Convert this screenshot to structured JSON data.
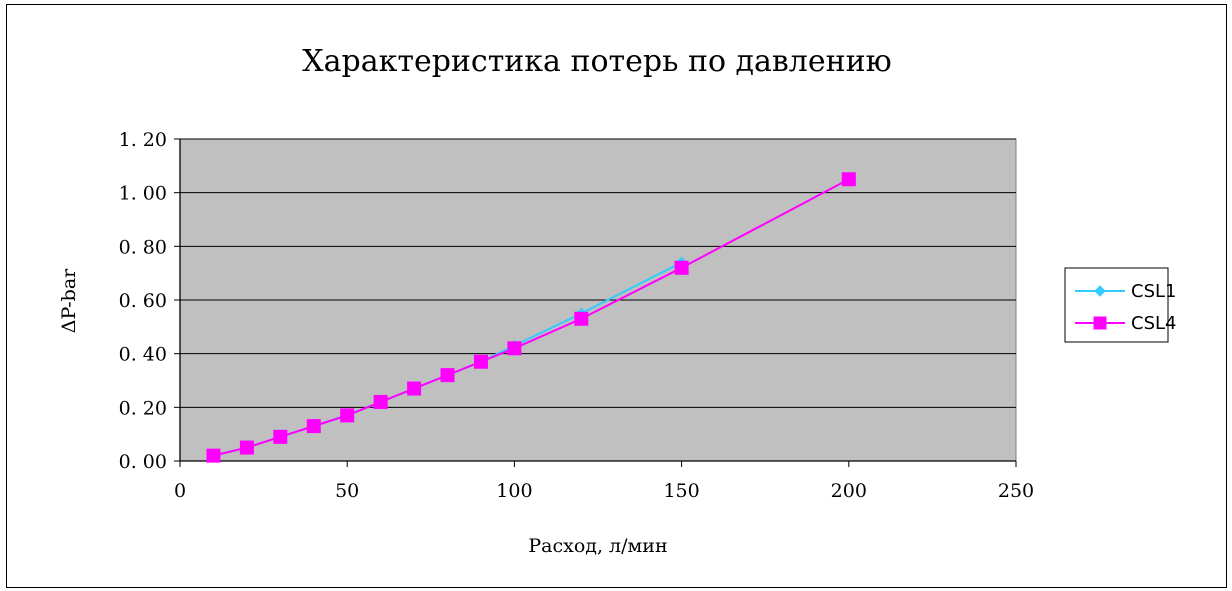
{
  "chart_data": {
    "type": "line",
    "title": "Характеристика потерь по давлению",
    "xlabel": "Расход, л/мин",
    "ylabel": "ΔP-bar",
    "xlim": [
      0,
      250
    ],
    "ylim": [
      0,
      1.2
    ],
    "x_ticks": [
      "0",
      "50",
      "100",
      "150",
      "200",
      "250"
    ],
    "y_ticks": [
      "0. 00",
      "0. 20",
      "0. 40",
      "0. 60",
      "0. 80",
      "1. 00",
      "1. 20"
    ],
    "grid": "horizontal",
    "legend_position": "right",
    "plot_background": "#c0c0c0",
    "series": [
      {
        "name": "CSL1",
        "color": "#33ccff",
        "marker": "diamond",
        "x": [
          10,
          20,
          30,
          40,
          50,
          60,
          70,
          80,
          90,
          100,
          120,
          150
        ],
        "y": [
          0.02,
          0.05,
          0.09,
          0.13,
          0.17,
          0.22,
          0.27,
          0.32,
          0.37,
          0.43,
          0.55,
          0.74
        ]
      },
      {
        "name": "CSL4",
        "color": "#ff00ff",
        "marker": "square",
        "x": [
          10,
          20,
          30,
          40,
          50,
          60,
          70,
          80,
          90,
          100,
          120,
          150,
          200
        ],
        "y": [
          0.02,
          0.05,
          0.09,
          0.13,
          0.17,
          0.22,
          0.27,
          0.32,
          0.37,
          0.42,
          0.53,
          0.72,
          1.05
        ]
      }
    ]
  }
}
